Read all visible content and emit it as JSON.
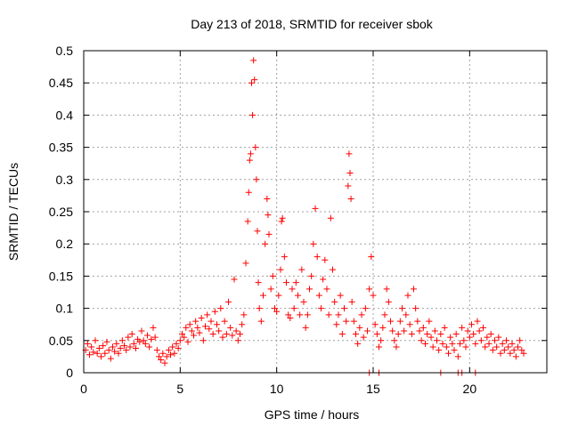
{
  "chart_data": {
    "type": "scatter",
    "title": "Day 213 of 2018, SRMTID for receiver sbok",
    "xlabel": "GPS time / hours",
    "ylabel": "SRMTID / TECUs",
    "xlim": [
      0,
      24
    ],
    "ylim": [
      0,
      0.5
    ],
    "x_ticks": [
      0,
      5,
      10,
      15,
      20
    ],
    "x_tick_labels": [
      "0",
      "5",
      "10",
      "15",
      "20"
    ],
    "y_ticks": [
      0,
      0.05,
      0.1,
      0.15,
      0.2,
      0.25,
      0.3,
      0.35,
      0.4,
      0.45,
      0.5
    ],
    "y_tick_labels": [
      "0",
      "0.05",
      "0.1",
      "0.15",
      "0.2",
      "0.25",
      "0.3",
      "0.35",
      "0.4",
      "0.45",
      "0.5"
    ],
    "grid": true,
    "marker": "plus",
    "color": "#ff0000",
    "series": [
      {
        "name": "SRMTID",
        "points": [
          [
            0.1,
            0.035
          ],
          [
            0.2,
            0.045
          ],
          [
            0.3,
            0.028
          ],
          [
            0.4,
            0.04
          ],
          [
            0.5,
            0.032
          ],
          [
            0.6,
            0.05
          ],
          [
            0.7,
            0.03
          ],
          [
            0.8,
            0.038
          ],
          [
            0.9,
            0.025
          ],
          [
            1.0,
            0.042
          ],
          [
            1.1,
            0.03
          ],
          [
            1.2,
            0.048
          ],
          [
            1.3,
            0.035
          ],
          [
            1.4,
            0.022
          ],
          [
            1.5,
            0.04
          ],
          [
            1.6,
            0.033
          ],
          [
            1.7,
            0.045
          ],
          [
            1.8,
            0.03
          ],
          [
            1.9,
            0.038
          ],
          [
            2.0,
            0.05
          ],
          [
            2.1,
            0.042
          ],
          [
            2.2,
            0.035
          ],
          [
            2.3,
            0.055
          ],
          [
            2.4,
            0.04
          ],
          [
            2.5,
            0.06
          ],
          [
            2.6,
            0.045
          ],
          [
            2.7,
            0.038
          ],
          [
            2.8,
            0.052
          ],
          [
            2.9,
            0.048
          ],
          [
            3.0,
            0.065
          ],
          [
            3.1,
            0.05
          ],
          [
            3.2,
            0.045
          ],
          [
            3.3,
            0.058
          ],
          [
            3.4,
            0.04
          ],
          [
            3.5,
            0.052
          ],
          [
            3.6,
            0.07
          ],
          [
            3.7,
            0.055
          ],
          [
            3.8,
            0.035
          ],
          [
            3.9,
            0.025
          ],
          [
            4.0,
            0.02
          ],
          [
            4.1,
            0.03
          ],
          [
            4.2,
            0.015
          ],
          [
            4.3,
            0.025
          ],
          [
            4.4,
            0.035
          ],
          [
            4.5,
            0.028
          ],
          [
            4.6,
            0.04
          ],
          [
            4.7,
            0.03
          ],
          [
            4.8,
            0.045
          ],
          [
            4.9,
            0.038
          ],
          [
            5.0,
            0.05
          ],
          [
            5.1,
            0.06
          ],
          [
            5.2,
            0.055
          ],
          [
            5.3,
            0.07
          ],
          [
            5.4,
            0.048
          ],
          [
            5.5,
            0.075
          ],
          [
            5.6,
            0.065
          ],
          [
            5.7,
            0.058
          ],
          [
            5.8,
            0.08
          ],
          [
            5.9,
            0.07
          ],
          [
            6.0,
            0.062
          ],
          [
            6.1,
            0.085
          ],
          [
            6.2,
            0.05
          ],
          [
            6.3,
            0.072
          ],
          [
            6.4,
            0.09
          ],
          [
            6.5,
            0.068
          ],
          [
            6.6,
            0.08
          ],
          [
            6.7,
            0.06
          ],
          [
            6.8,
            0.095
          ],
          [
            6.9,
            0.075
          ],
          [
            7.0,
            0.065
          ],
          [
            7.1,
            0.1
          ],
          [
            7.2,
            0.055
          ],
          [
            7.3,
            0.08
          ],
          [
            7.4,
            0.06
          ],
          [
            7.5,
            0.11
          ],
          [
            7.6,
            0.07
          ],
          [
            7.7,
            0.058
          ],
          [
            7.8,
            0.145
          ],
          [
            7.9,
            0.065
          ],
          [
            8.0,
            0.05
          ],
          [
            8.1,
            0.06
          ],
          [
            8.2,
            0.075
          ],
          [
            8.3,
            0.09
          ],
          [
            8.4,
            0.17
          ],
          [
            8.5,
            0.235
          ],
          [
            8.55,
            0.28
          ],
          [
            8.6,
            0.33
          ],
          [
            8.65,
            0.34
          ],
          [
            8.7,
            0.45
          ],
          [
            8.75,
            0.4
          ],
          [
            8.8,
            0.485
          ],
          [
            8.85,
            0.455
          ],
          [
            8.9,
            0.35
          ],
          [
            8.95,
            0.3
          ],
          [
            9.0,
            0.22
          ],
          [
            9.05,
            0.14
          ],
          [
            9.1,
            0.1
          ],
          [
            9.2,
            0.08
          ],
          [
            9.3,
            0.12
          ],
          [
            9.4,
            0.2
          ],
          [
            9.5,
            0.27
          ],
          [
            9.55,
            0.245
          ],
          [
            9.6,
            0.215
          ],
          [
            9.7,
            0.13
          ],
          [
            9.8,
            0.15
          ],
          [
            9.9,
            0.1
          ],
          [
            10.0,
            0.095
          ],
          [
            10.1,
            0.12
          ],
          [
            10.2,
            0.16
          ],
          [
            10.25,
            0.235
          ],
          [
            10.3,
            0.24
          ],
          [
            10.4,
            0.18
          ],
          [
            10.5,
            0.14
          ],
          [
            10.6,
            0.09
          ],
          [
            10.7,
            0.085
          ],
          [
            10.8,
            0.13
          ],
          [
            10.9,
            0.1
          ],
          [
            11.0,
            0.14
          ],
          [
            11.1,
            0.12
          ],
          [
            11.2,
            0.09
          ],
          [
            11.3,
            0.16
          ],
          [
            11.4,
            0.11
          ],
          [
            11.5,
            0.07
          ],
          [
            11.6,
            0.09
          ],
          [
            11.7,
            0.13
          ],
          [
            11.8,
            0.15
          ],
          [
            11.9,
            0.2
          ],
          [
            12.0,
            0.255
          ],
          [
            12.1,
            0.18
          ],
          [
            12.2,
            0.12
          ],
          [
            12.3,
            0.1
          ],
          [
            12.4,
            0.145
          ],
          [
            12.5,
            0.175
          ],
          [
            12.6,
            0.13
          ],
          [
            12.7,
            0.09
          ],
          [
            12.8,
            0.24
          ],
          [
            12.9,
            0.16
          ],
          [
            13.0,
            0.11
          ],
          [
            13.1,
            0.075
          ],
          [
            13.2,
            0.09
          ],
          [
            13.3,
            0.12
          ],
          [
            13.4,
            0.06
          ],
          [
            13.5,
            0.1
          ],
          [
            13.6,
            0.08
          ],
          [
            13.7,
            0.29
          ],
          [
            13.75,
            0.34
          ],
          [
            13.8,
            0.31
          ],
          [
            13.85,
            0.27
          ],
          [
            13.9,
            0.11
          ],
          [
            14.0,
            0.08
          ],
          [
            14.1,
            0.06
          ],
          [
            14.2,
            0.045
          ],
          [
            14.3,
            0.07
          ],
          [
            14.4,
            0.09
          ],
          [
            14.5,
            0.055
          ],
          [
            14.6,
            0.1
          ],
          [
            14.7,
            0.065
          ],
          [
            14.8,
            0.13
          ],
          [
            14.9,
            0.18
          ],
          [
            15.0,
            0.12
          ],
          [
            15.1,
            0.075
          ],
          [
            15.2,
            0.06
          ],
          [
            15.3,
            0.04
          ],
          [
            15.4,
            0.05
          ],
          [
            15.5,
            0.07
          ],
          [
            15.6,
            0.09
          ],
          [
            15.7,
            0.13
          ],
          [
            15.8,
            0.11
          ],
          [
            15.9,
            0.08
          ],
          [
            16.0,
            0.065
          ],
          [
            16.1,
            0.05
          ],
          [
            16.2,
            0.04
          ],
          [
            16.3,
            0.06
          ],
          [
            16.4,
            0.08
          ],
          [
            16.5,
            0.1
          ],
          [
            16.6,
            0.065
          ],
          [
            16.7,
            0.09
          ],
          [
            16.8,
            0.12
          ],
          [
            16.9,
            0.075
          ],
          [
            17.0,
            0.06
          ],
          [
            17.1,
            0.13
          ],
          [
            17.2,
            0.1
          ],
          [
            17.3,
            0.08
          ],
          [
            17.4,
            0.065
          ],
          [
            17.5,
            0.05
          ],
          [
            17.6,
            0.07
          ],
          [
            17.7,
            0.045
          ],
          [
            17.8,
            0.06
          ],
          [
            17.9,
            0.08
          ],
          [
            18.0,
            0.055
          ],
          [
            18.1,
            0.04
          ],
          [
            18.2,
            0.065
          ],
          [
            18.3,
            0.05
          ],
          [
            18.4,
            0.035
          ],
          [
            18.5,
            0.06
          ],
          [
            18.6,
            0.045
          ],
          [
            18.7,
            0.07
          ],
          [
            18.8,
            0.04
          ],
          [
            18.9,
            0.03
          ],
          [
            19.0,
            0.055
          ],
          [
            19.1,
            0.045
          ],
          [
            19.2,
            0.035
          ],
          [
            19.3,
            0.06
          ],
          [
            19.4,
            0.025
          ],
          [
            19.5,
            0.045
          ],
          [
            19.6,
            0.07
          ],
          [
            19.7,
            0.05
          ],
          [
            19.8,
            0.04
          ],
          [
            19.9,
            0.065
          ],
          [
            20.0,
            0.055
          ],
          [
            20.1,
            0.075
          ],
          [
            20.2,
            0.06
          ],
          [
            20.3,
            0.045
          ],
          [
            20.4,
            0.08
          ],
          [
            20.5,
            0.065
          ],
          [
            20.6,
            0.05
          ],
          [
            20.7,
            0.07
          ],
          [
            20.8,
            0.04
          ],
          [
            20.9,
            0.055
          ],
          [
            21.0,
            0.045
          ],
          [
            21.1,
            0.06
          ],
          [
            21.2,
            0.035
          ],
          [
            21.3,
            0.05
          ],
          [
            21.4,
            0.04
          ],
          [
            21.5,
            0.055
          ],
          [
            21.6,
            0.03
          ],
          [
            21.7,
            0.045
          ],
          [
            21.8,
            0.035
          ],
          [
            21.9,
            0.05
          ],
          [
            22.0,
            0.04
          ],
          [
            22.1,
            0.03
          ],
          [
            22.2,
            0.045
          ],
          [
            22.3,
            0.035
          ],
          [
            22.4,
            0.025
          ],
          [
            22.5,
            0.04
          ],
          [
            22.6,
            0.05
          ],
          [
            22.7,
            0.035
          ],
          [
            22.8,
            0.03
          ],
          [
            14.8,
            0.0
          ],
          [
            15.3,
            0.0
          ],
          [
            18.5,
            0.0
          ],
          [
            19.4,
            0.0
          ],
          [
            19.6,
            0.0
          ],
          [
            20.3,
            0.0
          ]
        ]
      }
    ]
  }
}
